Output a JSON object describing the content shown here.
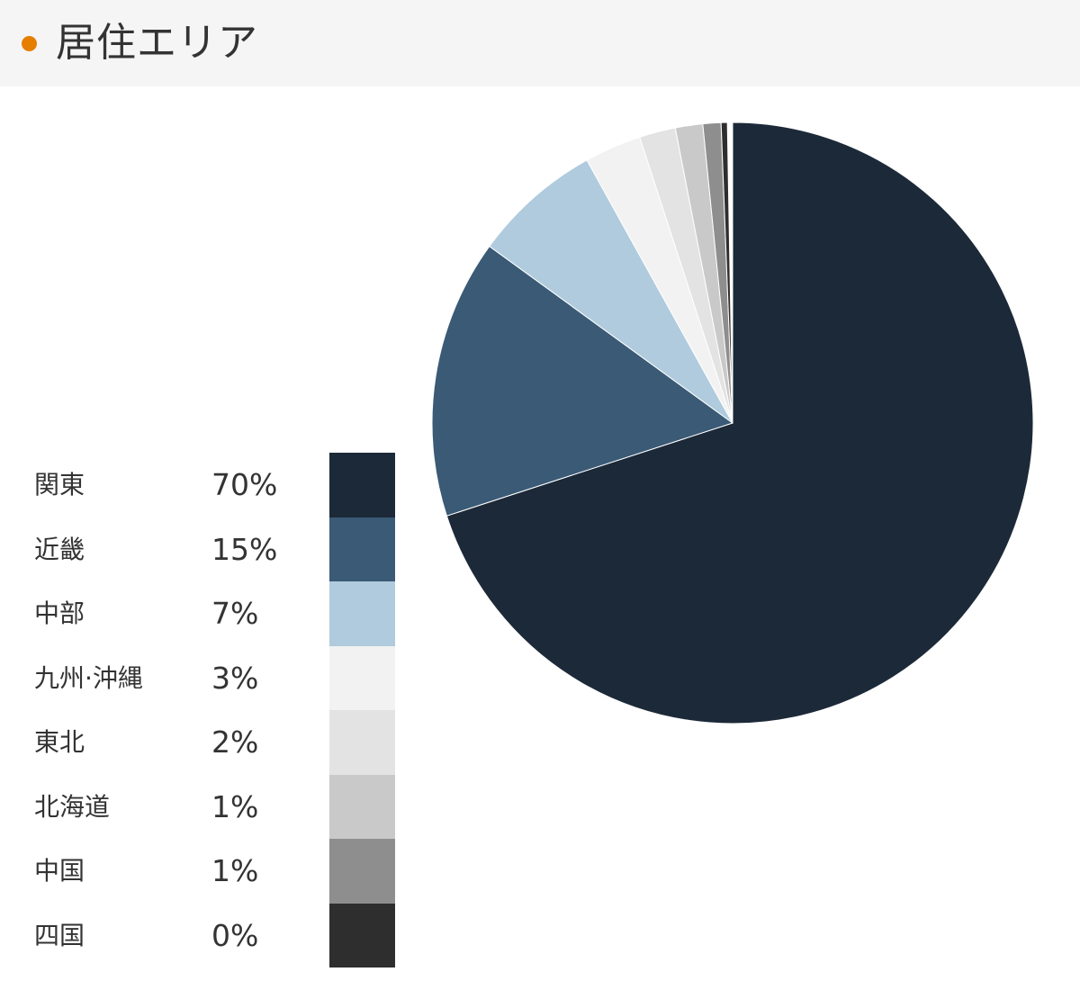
{
  "header": {
    "title": "居住エリア",
    "dot_color": "#e67e00"
  },
  "chart_data": {
    "type": "pie",
    "title": "居住エリア",
    "categories": [
      "関東",
      "近畿",
      "中部",
      "九州·沖縄",
      "東北",
      "北海道",
      "中国",
      "四国"
    ],
    "values": [
      70,
      15,
      7,
      3,
      2,
      1,
      1,
      0
    ],
    "value_labels": [
      "70%",
      "15%",
      "7%",
      "3%",
      "2%",
      "1%",
      "1%",
      "0%"
    ],
    "slice_angles_deg": [
      252,
      54,
      25,
      11,
      7,
      5.3,
      3.5,
      1.2
    ],
    "colors": [
      "#1c2938",
      "#3a5a76",
      "#b0cbdd",
      "#f2f2f2",
      "#e3e3e3",
      "#c9c9c9",
      "#8e8e8e",
      "#2e2e2e"
    ],
    "legend_position": "left"
  }
}
